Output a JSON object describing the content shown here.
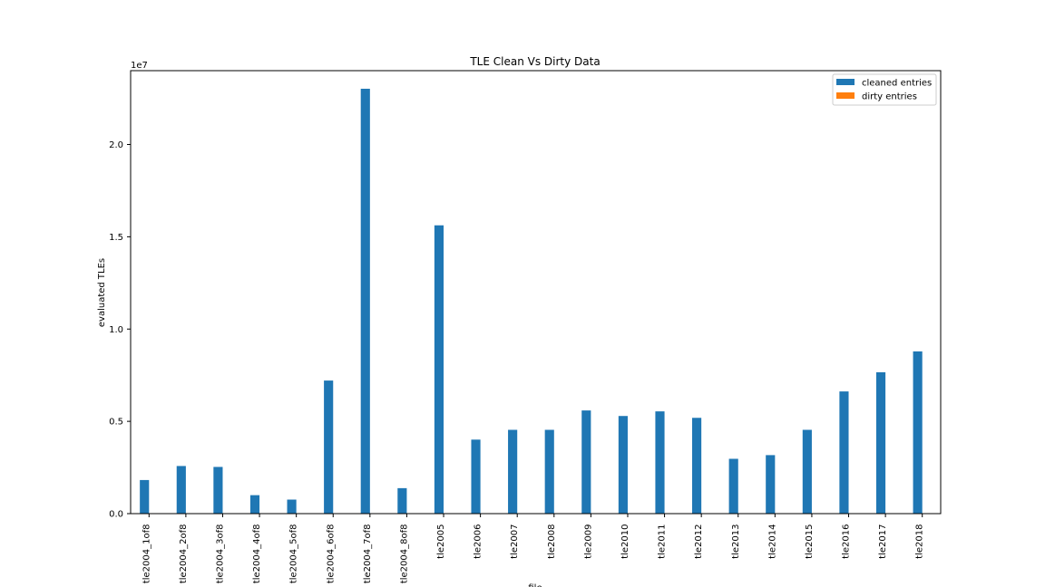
{
  "chart_data": {
    "type": "bar",
    "title": "TLE Clean Vs Dirty Data",
    "xlabel": "file",
    "ylabel": "evaluated TLEs",
    "ylim": [
      0,
      24000000
    ],
    "y_offset_text": "1e7",
    "yticks": [
      0,
      5000000,
      10000000,
      15000000,
      20000000
    ],
    "ytick_labels": [
      "0.0",
      "0.5",
      "1.0",
      "1.5",
      "2.0"
    ],
    "categories": [
      "tle2004_1of8",
      "tle2004_2of8",
      "tle2004_3of8",
      "tle2004_4of8",
      "tle2004_5of8",
      "tle2004_6of8",
      "tle2004_7of8",
      "tle2004_8of8",
      "tle2005",
      "tle2006",
      "tle2007",
      "tle2008",
      "tle2009",
      "tle2010",
      "tle2011",
      "tle2012",
      "tle2013",
      "tle2014",
      "tle2015",
      "tle2016",
      "tle2017",
      "tle2018"
    ],
    "series": [
      {
        "name": "cleaned entries",
        "color": "#1f77b4",
        "values": [
          1820000,
          2580000,
          2530000,
          1000000,
          760000,
          7210000,
          23020000,
          1380000,
          15620000,
          4010000,
          4540000,
          4540000,
          5590000,
          5290000,
          5540000,
          5190000,
          2970000,
          3170000,
          4540000,
          6620000,
          7660000,
          8790000
        ]
      },
      {
        "name": "dirty entries",
        "color": "#ff7f0e",
        "values": [
          0,
          0,
          0,
          0,
          0,
          0,
          0,
          0,
          0,
          0,
          0,
          0,
          0,
          0,
          0,
          0,
          0,
          0,
          0,
          0,
          0,
          20000
        ]
      }
    ],
    "legend_position": "top-right",
    "grid": false
  }
}
